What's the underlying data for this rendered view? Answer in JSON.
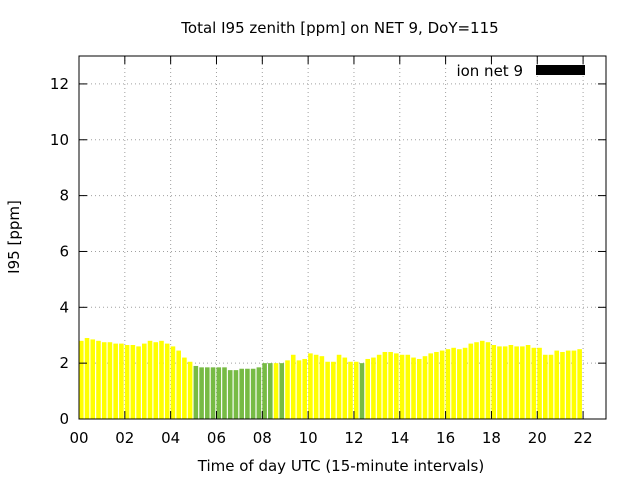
{
  "chart_data": {
    "type": "bar",
    "title": "Total I95 zenith [ppm] on NET 9, DoY=115",
    "xlabel": "Time of day UTC (15-minute intervals)",
    "ylabel": "I95 [ppm]",
    "xlim": [
      0,
      23
    ],
    "ylim": [
      0,
      13
    ],
    "x_ticks": [
      0,
      2,
      4,
      6,
      8,
      10,
      12,
      14,
      16,
      18,
      20,
      22
    ],
    "x_tick_labels": [
      "00",
      "02",
      "04",
      "06",
      "08",
      "10",
      "12",
      "14",
      "16",
      "18",
      "20",
      "22"
    ],
    "y_ticks": [
      0,
      2,
      4,
      6,
      8,
      10,
      12
    ],
    "y_tick_labels": [
      "0",
      "2",
      "4",
      "6",
      "8",
      "10",
      "12"
    ],
    "grid": true,
    "legend": {
      "placement": "top-right",
      "entries": [
        {
          "label": "ion net 9",
          "color": "#000000"
        }
      ]
    },
    "colors": {
      "high": "#ffff00",
      "low": "#77bb44",
      "legend_swatch": "#000000"
    },
    "bar_width_hours": 0.2,
    "series": [
      {
        "interval_hours": 0.25,
        "values": [
          2.8,
          2.9,
          2.85,
          2.8,
          2.75,
          2.75,
          2.7,
          2.7,
          2.65,
          2.65,
          2.6,
          2.7,
          2.8,
          2.75,
          2.8,
          2.7,
          2.6,
          2.45,
          2.2,
          2.05,
          1.9,
          1.85,
          1.85,
          1.85,
          1.85,
          1.85,
          1.75,
          1.75,
          1.8,
          1.8,
          1.8,
          1.85,
          2.0,
          2.0,
          2.0,
          2.0,
          2.1,
          2.3,
          2.1,
          2.15,
          2.35,
          2.3,
          2.25,
          2.05,
          2.05,
          2.3,
          2.2,
          2.05,
          2.05,
          2.0,
          2.15,
          2.2,
          2.3,
          2.4,
          2.4,
          2.35,
          2.3,
          2.3,
          2.2,
          2.15,
          2.25,
          2.35,
          2.4,
          2.45,
          2.5,
          2.55,
          2.5,
          2.55,
          2.7,
          2.75,
          2.8,
          2.75,
          2.65,
          2.6,
          2.6,
          2.65,
          2.6,
          2.6,
          2.65,
          2.55,
          2.55,
          2.3,
          2.3,
          2.45,
          2.4,
          2.45,
          2.45,
          2.5
        ],
        "bar_color_class": [
          "high",
          "high",
          "high",
          "high",
          "high",
          "high",
          "high",
          "high",
          "high",
          "high",
          "high",
          "high",
          "high",
          "high",
          "high",
          "high",
          "high",
          "high",
          "high",
          "high",
          "low",
          "low",
          "low",
          "low",
          "low",
          "low",
          "low",
          "low",
          "low",
          "low",
          "low",
          "low",
          "low",
          "low",
          "high",
          "low",
          "high",
          "high",
          "high",
          "high",
          "high",
          "high",
          "high",
          "high",
          "high",
          "high",
          "high",
          "high",
          "high",
          "low",
          "high",
          "high",
          "high",
          "high",
          "high",
          "high",
          "high",
          "high",
          "high",
          "high",
          "high",
          "high",
          "high",
          "high",
          "high",
          "high",
          "high",
          "high",
          "high",
          "high",
          "high",
          "high",
          "high",
          "high",
          "high",
          "high",
          "high",
          "high",
          "high",
          "high",
          "high",
          "high",
          "high",
          "high",
          "high",
          "high",
          "high",
          "high"
        ]
      }
    ]
  }
}
